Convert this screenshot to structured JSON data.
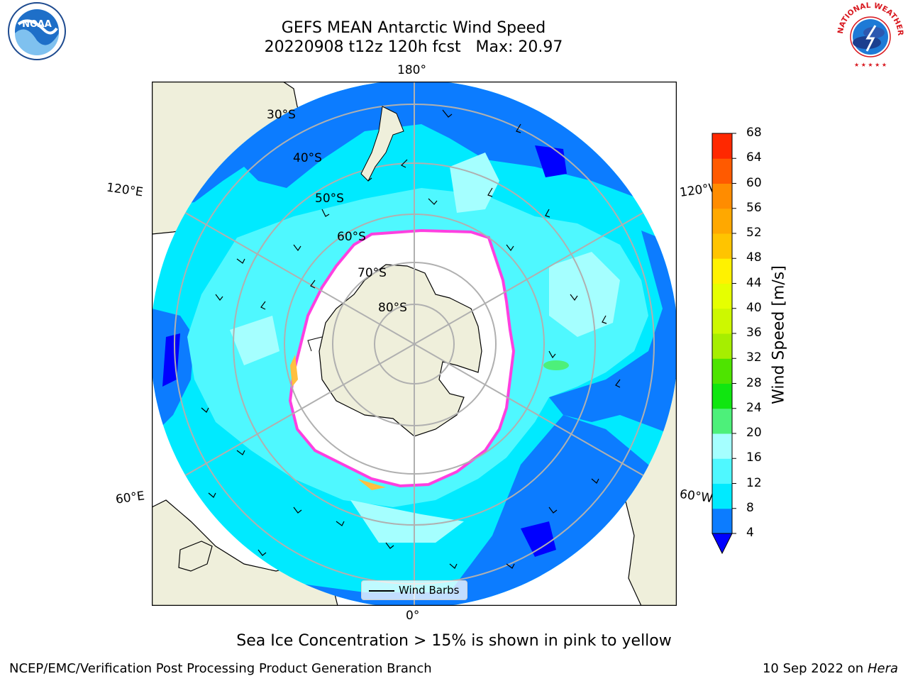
{
  "header": {
    "title_line1": "GEFS MEAN Antarctic Wind Speed",
    "title_line2": "20220908 t12z 120h fcst   Max: 20.97"
  },
  "logos": {
    "left": {
      "text": "NOAA",
      "icon": "noaa-logo-icon"
    },
    "right": {
      "text": "NATIONAL WEATHER SERVICE",
      "icon": "nws-logo-icon"
    }
  },
  "map": {
    "projection": "south-polar-stereographic",
    "longitude_labels": {
      "top": "180°",
      "bottom": "0°",
      "upper_left": "120°E",
      "upper_right": "120°W",
      "lower_left": "60°E",
      "lower_right": "60°W"
    },
    "latitude_labels": [
      "30°S",
      "40°S",
      "50°S",
      "60°S",
      "70°S",
      "80°S"
    ],
    "colors": {
      "land": "#efefdb",
      "ocean_4_8": "#0c7cff",
      "ocean_8_12": "#00eaff",
      "ocean_12_16": "#4ff8ff",
      "ocean_16_20": "#a5ffff",
      "ice_edge": "#ff40e0",
      "ice_yellow": "#ffc040"
    }
  },
  "legend": {
    "label": "Wind Barbs"
  },
  "colorbar": {
    "title": "Wind Speed [m/s]",
    "ticks": [
      "4",
      "8",
      "12",
      "16",
      "20",
      "24",
      "28",
      "32",
      "36",
      "40",
      "44",
      "48",
      "52",
      "56",
      "60",
      "64",
      "68"
    ],
    "colors": [
      "#0c7cff",
      "#00eaff",
      "#4ff8ff",
      "#a5ffff",
      "#4df07a",
      "#10e610",
      "#4ee400",
      "#a6ee00",
      "#cdf800",
      "#e6ff00",
      "#fff200",
      "#ffc400",
      "#ffa800",
      "#ff8c00",
      "#ff5a00",
      "#ff2800"
    ],
    "under_color": "#0000ff"
  },
  "caption": "Sea Ice Concentration > 15% is shown in pink to yellow",
  "footer": {
    "left": "NCEP/EMC/Verification Post Processing Product Generation Branch",
    "date": "10 Sep 2022 on",
    "host": "Hera"
  }
}
